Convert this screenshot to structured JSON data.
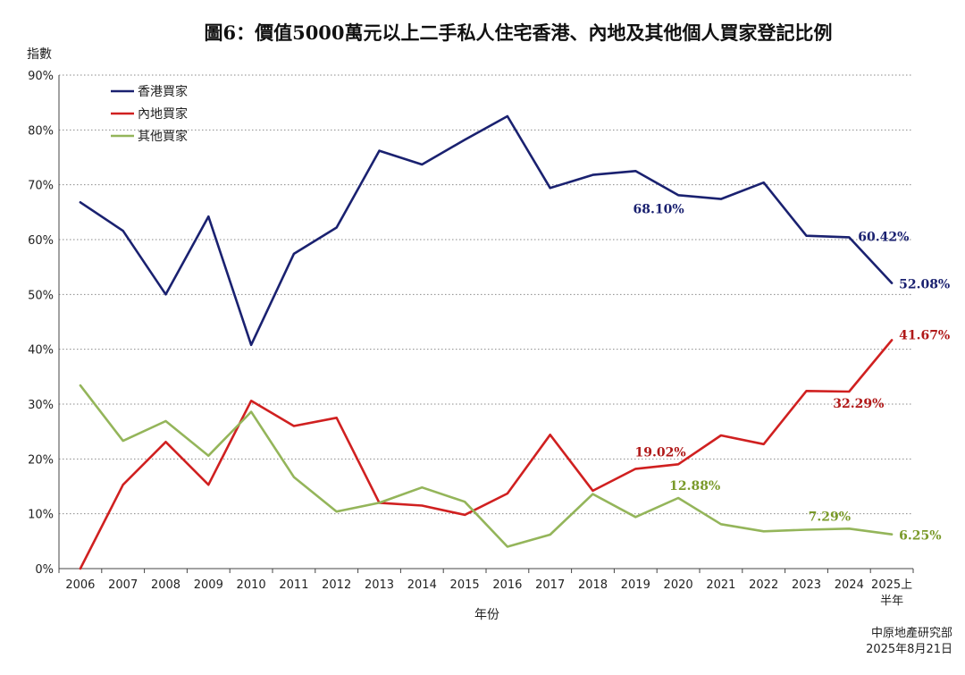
{
  "chart_data": {
    "type": "line",
    "title": "圖6：價值5000萬元以上二手私人住宅香港、內地及其他個人買家登記比例",
    "ylabel": "指數",
    "xlabel": "年份",
    "ylim": [
      0,
      90
    ],
    "y_ticks": [
      "0%",
      "10%",
      "20%",
      "30%",
      "40%",
      "50%",
      "60%",
      "70%",
      "80%",
      "90%"
    ],
    "categories": [
      "2006",
      "2007",
      "2008",
      "2009",
      "2010",
      "2011",
      "2012",
      "2013",
      "2014",
      "2015",
      "2016",
      "2017",
      "2018",
      "2019",
      "2020",
      "2021",
      "2022",
      "2023",
      "2024",
      "2025上半年"
    ],
    "x_tick_labels": [
      {
        "line1": "2006"
      },
      {
        "line1": "2007"
      },
      {
        "line1": "2008"
      },
      {
        "line1": "2009"
      },
      {
        "line1": "2010"
      },
      {
        "line1": "2011"
      },
      {
        "line1": "2012"
      },
      {
        "line1": "2013"
      },
      {
        "line1": "2014"
      },
      {
        "line1": "2015"
      },
      {
        "line1": "2016"
      },
      {
        "line1": "2017"
      },
      {
        "line1": "2018"
      },
      {
        "line1": "2019"
      },
      {
        "line1": "2020"
      },
      {
        "line1": "2021"
      },
      {
        "line1": "2022"
      },
      {
        "line1": "2023"
      },
      {
        "line1": "2024"
      },
      {
        "line1": "2025上",
        "line2": "半年"
      }
    ],
    "series": [
      {
        "name": "香港買家",
        "color": "#1a2170",
        "values": [
          66.8,
          61.6,
          50.0,
          64.2,
          40.8,
          57.4,
          62.2,
          76.2,
          73.7,
          78.2,
          82.5,
          69.4,
          71.8,
          72.5,
          68.1,
          67.4,
          70.4,
          60.7,
          60.42,
          52.08
        ]
      },
      {
        "name": "內地買家",
        "color": "#d02020",
        "values": [
          0.0,
          15.3,
          23.1,
          15.3,
          30.6,
          26.0,
          27.5,
          12.0,
          11.5,
          9.8,
          13.7,
          24.4,
          14.2,
          18.2,
          19.02,
          24.3,
          22.7,
          32.4,
          32.29,
          41.67
        ]
      },
      {
        "name": "其他買家",
        "color": "#94b55a",
        "values": [
          33.4,
          23.3,
          26.9,
          20.6,
          28.6,
          16.7,
          10.4,
          12.0,
          14.8,
          12.2,
          4.0,
          6.2,
          13.6,
          9.4,
          12.88,
          8.1,
          6.8,
          7.1,
          7.29,
          6.25
        ]
      }
    ],
    "data_labels": [
      {
        "series": 0,
        "index": 14,
        "text": "68.10%",
        "color": "#1a2170"
      },
      {
        "series": 0,
        "index": 18,
        "text": "60.42%",
        "color": "#1a2170"
      },
      {
        "series": 0,
        "index": 19,
        "text": "52.08%",
        "color": "#1a2170"
      },
      {
        "series": 1,
        "index": 14,
        "text": "19.02%",
        "color": "#b01818"
      },
      {
        "series": 1,
        "index": 18,
        "text": "32.29%",
        "color": "#b01818"
      },
      {
        "series": 1,
        "index": 19,
        "text": "41.67%",
        "color": "#b01818"
      },
      {
        "series": 2,
        "index": 14,
        "text": "12.88%",
        "color": "#7a9a2a"
      },
      {
        "series": 2,
        "index": 18,
        "text": "7.29%",
        "color": "#7a9a2a"
      },
      {
        "series": 2,
        "index": 19,
        "text": "6.25%",
        "color": "#7a9a2a"
      }
    ],
    "legend_position": "top-left",
    "source": "中原地產研究部",
    "date": "2025年8月21日"
  }
}
